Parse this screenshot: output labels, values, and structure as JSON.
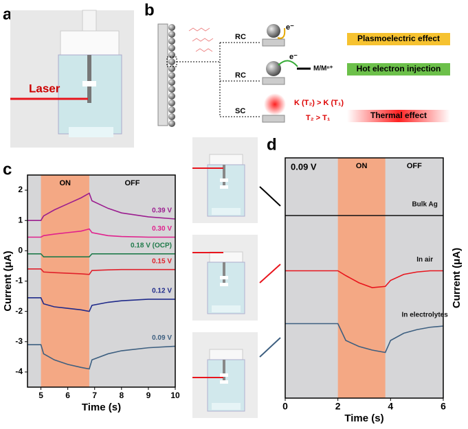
{
  "panels": {
    "a": "a",
    "b": "b",
    "c": "c",
    "d": "d"
  },
  "photo": {
    "laser": "Laser"
  },
  "diagram": {
    "rc1": "RC",
    "rc2": "RC",
    "sc": "SC",
    "e1": "e⁻",
    "e2": "e⁻",
    "redox": "M/Mⁿ⁺",
    "effect1": "Plasmoelectric effect",
    "effect2": "Hot electron injection",
    "kinetic": "K (T₂) > K (T₁)",
    "temp": "T₂ > T₁",
    "effect3": "Thermal effect"
  },
  "chart_data": [
    {
      "type": "line",
      "x_label": "Time (s)",
      "y_label": "Current (μA)",
      "on_label": "ON",
      "off_label": "OFF",
      "on_span": [
        5,
        6.8
      ],
      "xlim": [
        4.5,
        10
      ],
      "xticks": [
        5,
        6,
        7,
        8,
        9,
        10
      ],
      "ylim": [
        -4.5,
        2.5
      ],
      "yticks": [
        -4,
        -3,
        -2,
        -1,
        0,
        1,
        2
      ],
      "x": [
        4.5,
        5,
        5.1,
        5.5,
        6,
        6.5,
        6.8,
        6.9,
        7.5,
        8,
        9,
        10
      ],
      "series": [
        {
          "name": "0.39 V",
          "color": "#9b1d8f",
          "values": [
            1.0,
            1.0,
            1.15,
            1.35,
            1.55,
            1.75,
            1.9,
            1.65,
            1.4,
            1.25,
            1.12,
            1.05
          ]
        },
        {
          "name": "0.30 V",
          "color": "#e0208c",
          "values": [
            0.45,
            0.45,
            0.5,
            0.55,
            0.6,
            0.65,
            0.72,
            0.6,
            0.5,
            0.47,
            0.45,
            0.45
          ]
        },
        {
          "name": "0.18 V (OCP)",
          "color": "#1f7a4a",
          "values": [
            -0.1,
            -0.1,
            -0.2,
            -0.2,
            -0.2,
            -0.2,
            -0.2,
            -0.1,
            -0.1,
            -0.1,
            -0.1,
            -0.1
          ]
        },
        {
          "name": "0.15 V",
          "color": "#e0202a",
          "values": [
            -0.6,
            -0.6,
            -0.7,
            -0.72,
            -0.74,
            -0.76,
            -0.78,
            -0.65,
            -0.63,
            -0.62,
            -0.62,
            -0.62
          ]
        },
        {
          "name": "0.12 V",
          "color": "#1f2a8a",
          "values": [
            -1.55,
            -1.55,
            -1.75,
            -1.85,
            -1.9,
            -1.95,
            -2.0,
            -1.8,
            -1.7,
            -1.65,
            -1.6,
            -1.6
          ]
        },
        {
          "name": "0.09 V",
          "color": "#3d5f80",
          "values": [
            -3.1,
            -3.1,
            -3.4,
            -3.6,
            -3.75,
            -3.85,
            -3.9,
            -3.6,
            -3.4,
            -3.3,
            -3.2,
            -3.15
          ]
        }
      ]
    },
    {
      "type": "line",
      "x_label": "Time (s)",
      "y_label": "Current (μA)",
      "annotation": "0.09 V",
      "on_label": "ON",
      "off_label": "OFF",
      "on_span": [
        2,
        3.8
      ],
      "xlim": [
        0,
        6
      ],
      "xticks": [
        0,
        2,
        4,
        6
      ],
      "ylim": [
        0,
        10
      ],
      "x": [
        0,
        0.5,
        1,
        1.5,
        2,
        2.3,
        2.8,
        3.3,
        3.8,
        4,
        4.5,
        5,
        5.5,
        6
      ],
      "series": [
        {
          "name": "Bulk Ag",
          "color": "#111111",
          "values": [
            7.6,
            7.6,
            7.6,
            7.6,
            7.6,
            7.6,
            7.6,
            7.6,
            7.6,
            7.6,
            7.6,
            7.6,
            7.6,
            7.6
          ]
        },
        {
          "name": "In air",
          "color": "#e8141c",
          "values": [
            5.3,
            5.3,
            5.3,
            5.3,
            5.3,
            5.1,
            4.8,
            4.6,
            4.65,
            4.9,
            5.15,
            5.25,
            5.3,
            5.3
          ]
        },
        {
          "name": "In electrolytes",
          "color": "#3d5f80",
          "values": [
            3.1,
            3.1,
            3.1,
            3.1,
            3.1,
            2.4,
            2.15,
            2.0,
            1.9,
            2.4,
            2.7,
            2.85,
            2.95,
            3.0
          ]
        }
      ]
    }
  ]
}
